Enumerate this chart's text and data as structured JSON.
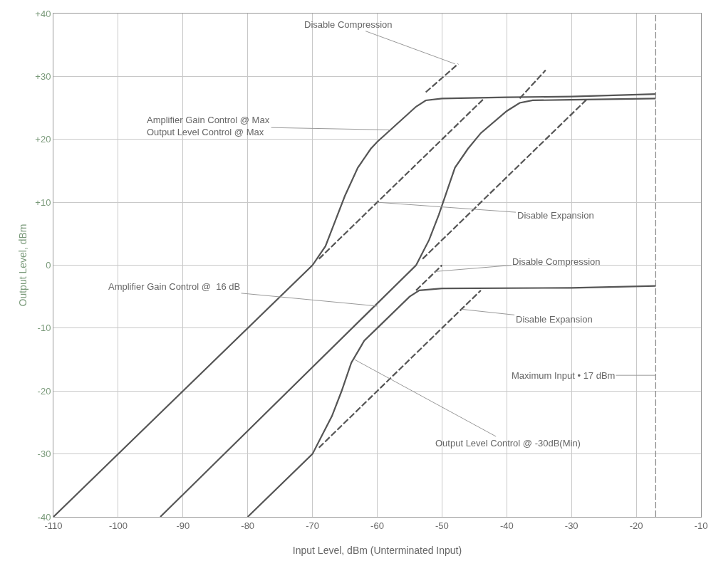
{
  "chart_data": {
    "type": "line",
    "xlabel": "Input Level, dBm (Unterminated Input)",
    "ylabel": "Output Level, dBm",
    "xlim": [
      -110,
      -10
    ],
    "xticks": [
      -110,
      -100,
      -90,
      -80,
      -70,
      -60,
      -50,
      -40,
      -30,
      -20,
      -10
    ],
    "ylim": [
      -40,
      40
    ],
    "yticks": [
      -40,
      -30,
      -20,
      -10,
      0,
      {
        "value": 10,
        "label": "+10"
      },
      {
        "value": 20,
        "label": "+20"
      },
      {
        "value": 30,
        "label": "+30"
      },
      {
        "value": 40,
        "label": "+40"
      }
    ],
    "grid": true,
    "marker": "none",
    "line_style": "solid",
    "series": [
      {
        "color": "#555555",
        "x": [
          -110,
          -70,
          -68,
          -66.5,
          -65,
          -63,
          -61,
          -60,
          -54,
          -52.5,
          -50,
          -40,
          -30,
          -17
        ],
        "values": [
          -40,
          0,
          3,
          7,
          11,
          15.5,
          18.5,
          19.6,
          25.2,
          26.2,
          26.5,
          26.7,
          26.8,
          27.2
        ]
      },
      {
        "color": "#555555",
        "x": [
          -93.5,
          -54,
          -52,
          -50.5,
          -49.5,
          -48,
          -46,
          -44,
          -40,
          -38,
          -36,
          -30,
          -17
        ],
        "values": [
          -40,
          0,
          4,
          8,
          11,
          15.5,
          18.5,
          21,
          24.5,
          25.8,
          26.2,
          26.3,
          26.5
        ]
      },
      {
        "color": "#555555",
        "x": [
          -80,
          -70,
          -68.5,
          -67,
          -65.5,
          -64,
          -62,
          -60,
          -55,
          -53.5,
          -50,
          -30,
          -17
        ],
        "values": [
          -40,
          -30,
          -27,
          -24,
          -20,
          -15.5,
          -12,
          -10,
          -5,
          -4,
          -3.7,
          -3.6,
          -3.3
        ]
      },
      {
        "color": "#555555",
        "line_style": "dashed",
        "x": [
          -69,
          -43.5
        ],
        "values": [
          1,
          26.5
        ]
      },
      {
        "color": "#555555",
        "line_style": "dashed",
        "x": [
          -52.5,
          -47.5
        ],
        "values": [
          27.5,
          32
        ]
      },
      {
        "color": "#555555",
        "line_style": "dashed",
        "x": [
          -53,
          -27.5
        ],
        "values": [
          1,
          26.5
        ]
      },
      {
        "color": "#555555",
        "line_style": "dashed",
        "x": [
          -38,
          -34
        ],
        "values": [
          26.5,
          31
        ]
      },
      {
        "color": "#555555",
        "line_style": "dashed",
        "x": [
          -69,
          -44
        ],
        "values": [
          -29,
          -4
        ]
      },
      {
        "color": "#555555",
        "line_style": "dashed",
        "x": [
          -54,
          -50
        ],
        "values": [
          -4,
          0
        ]
      }
    ],
    "ref_lines": [
      {
        "axis": "x",
        "value": -17,
        "label": "Maximum Input • 17 dBm",
        "color": "#888888",
        "line_style": "dashed"
      }
    ],
    "annotations": [
      {
        "text": "Disable Compression",
        "x": -48,
        "y": 32
      },
      {
        "text": "Amplifier Gain Control @ Max\nOutput Level Control @ Max",
        "x": -58,
        "y": 21.5
      },
      {
        "text": "Disable Expansion",
        "x": -60,
        "y": 10
      },
      {
        "text": "Disable Compression",
        "x": -51,
        "y": -1
      },
      {
        "text": "Amplifier Gain Control @  16 dB",
        "x": -60,
        "y": -6.5
      },
      {
        "text": "Disable Expansion",
        "x": -47,
        "y": -7
      },
      {
        "text": "Output Level Control @ -30dB(Min)",
        "x": -63.5,
        "y": -15
      }
    ]
  }
}
